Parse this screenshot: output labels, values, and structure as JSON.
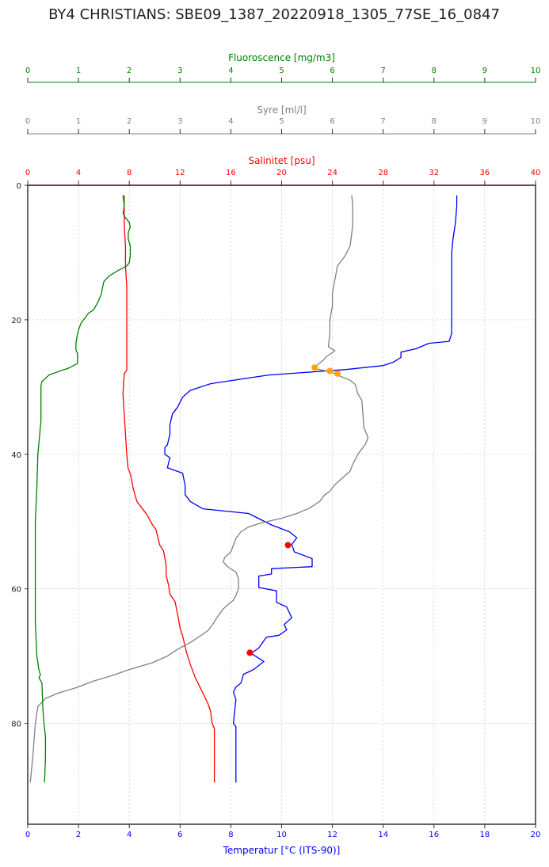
{
  "title": "BY4 CHRISTIANS: SBE09_1387_20220918_1305_77SE_16_0847",
  "colors": {
    "temperature": "#0000ff",
    "salinity": "#ff0000",
    "oxygen": "#808080",
    "fluorescence": "#008000",
    "marker_red": "#ff0000",
    "marker_orange": "#ffa500"
  },
  "chart_data": {
    "type": "line",
    "title": "BY4 CHRISTIANS: SBE09_1387_20220918_1305_77SE_16_0847",
    "grid": true,
    "y_axis": {
      "label": "",
      "range": [
        95,
        0
      ],
      "ticks": [
        "0",
        "20",
        "40",
        "60",
        "80"
      ],
      "tick_values": [
        0,
        20,
        40,
        60,
        80
      ],
      "inverted": true
    },
    "axes": [
      {
        "key": "temperature",
        "label": "Temperatur [°C (ITS-90)]",
        "position": "bottom",
        "color": "#0000ff",
        "range": [
          0,
          20
        ],
        "ticks": [
          "0",
          "2",
          "4",
          "6",
          "8",
          "10",
          "12",
          "14",
          "16",
          "18",
          "20"
        ]
      },
      {
        "key": "salinity",
        "label": "Salinitet [psu]",
        "position": "top",
        "color": "#ff0000",
        "range": [
          0,
          40
        ],
        "ticks": [
          "0",
          "4",
          "8",
          "12",
          "16",
          "20",
          "24",
          "28",
          "32",
          "36",
          "40"
        ]
      },
      {
        "key": "oxygen",
        "label": "Syre [ml/l]",
        "position": "top",
        "color": "#808080",
        "range": [
          0,
          10
        ],
        "ticks": [
          "0",
          "1",
          "2",
          "3",
          "4",
          "5",
          "6",
          "7",
          "8",
          "9",
          "10"
        ]
      },
      {
        "key": "fluorescence",
        "label": "Fluoroscence [mg/m3]",
        "position": "top",
        "color": "#008000",
        "range": [
          0,
          10
        ],
        "ticks": [
          "0",
          "1",
          "2",
          "3",
          "4",
          "5",
          "6",
          "7",
          "8",
          "9",
          "10"
        ]
      }
    ],
    "series": [
      {
        "key": "temperature",
        "axis": "temperature",
        "color": "#0000ff",
        "points": [
          [
            16.9,
            1.5
          ],
          [
            16.9,
            3
          ],
          [
            16.85,
            5.5
          ],
          [
            16.75,
            8
          ],
          [
            16.7,
            10
          ],
          [
            16.7,
            12
          ],
          [
            16.7,
            14
          ],
          [
            16.7,
            18
          ],
          [
            16.7,
            22
          ],
          [
            16.6,
            23.2
          ],
          [
            15.8,
            23.5
          ],
          [
            15.3,
            24.3
          ],
          [
            14.7,
            24.8
          ],
          [
            14.7,
            25.6
          ],
          [
            14.4,
            26.3
          ],
          [
            14,
            26.8
          ],
          [
            12.5,
            27.4
          ],
          [
            11,
            27.8
          ],
          [
            9.5,
            28.2
          ],
          [
            8.8,
            28.6
          ],
          [
            7.2,
            29.5
          ],
          [
            6.4,
            30.5
          ],
          [
            6.1,
            31.5
          ],
          [
            5.9,
            33
          ],
          [
            5.7,
            34
          ],
          [
            5.6,
            35.6
          ],
          [
            5.6,
            37
          ],
          [
            5.5,
            38.6
          ],
          [
            5.4,
            39
          ],
          [
            5.4,
            40
          ],
          [
            5.6,
            40.5
          ],
          [
            5.5,
            42
          ],
          [
            6.1,
            42.8
          ],
          [
            6.2,
            44.6
          ],
          [
            6.2,
            46
          ],
          [
            6.4,
            47
          ],
          [
            6.9,
            48.1
          ],
          [
            8.7,
            48.8
          ],
          [
            9.6,
            50.5
          ],
          [
            10.3,
            51.5
          ],
          [
            10.6,
            52.4
          ],
          [
            10.5,
            52.9
          ],
          [
            10.4,
            53.4
          ],
          [
            10.5,
            54.5
          ],
          [
            11.2,
            55.5
          ],
          [
            11.2,
            56.7
          ],
          [
            9.6,
            57
          ],
          [
            9.6,
            57.8
          ],
          [
            9.1,
            58.1
          ],
          [
            9.1,
            59.8
          ],
          [
            9.8,
            60.3
          ],
          [
            9.8,
            62
          ],
          [
            10.2,
            62.7
          ],
          [
            10.4,
            64.3
          ],
          [
            10.1,
            65.3
          ],
          [
            10.2,
            66.1
          ],
          [
            9.9,
            66.9
          ],
          [
            9.4,
            67.2
          ],
          [
            9.1,
            68.8
          ],
          [
            8.8,
            69.6
          ],
          [
            9.3,
            70.8
          ],
          [
            8.9,
            72
          ],
          [
            8.5,
            72.7
          ],
          [
            8.4,
            74
          ],
          [
            8.2,
            74.6
          ],
          [
            8.1,
            75.3
          ],
          [
            8.2,
            76.5
          ],
          [
            8.1,
            80
          ],
          [
            8.2,
            80.5
          ],
          [
            8.2,
            85
          ],
          [
            8.2,
            88.8
          ]
        ]
      },
      {
        "key": "salinity",
        "axis": "salinity",
        "color": "#ff0000",
        "points": [
          [
            7.5,
            1.5
          ],
          [
            7.6,
            3
          ],
          [
            7.6,
            6
          ],
          [
            7.7,
            9
          ],
          [
            7.7,
            12
          ],
          [
            7.8,
            15
          ],
          [
            7.8,
            20
          ],
          [
            7.8,
            24
          ],
          [
            7.8,
            27.5
          ],
          [
            7.6,
            28
          ],
          [
            7.5,
            31
          ],
          [
            7.6,
            34
          ],
          [
            7.7,
            37
          ],
          [
            7.8,
            40
          ],
          [
            7.9,
            42
          ],
          [
            8.1,
            43
          ],
          [
            8.3,
            45
          ],
          [
            8.6,
            47
          ],
          [
            9,
            48
          ],
          [
            9.4,
            49
          ],
          [
            9.8,
            50.4
          ],
          [
            10.1,
            51.2
          ],
          [
            10.2,
            52
          ],
          [
            10.4,
            53.5
          ],
          [
            10.7,
            54.4
          ],
          [
            10.9,
            56.5
          ],
          [
            10.9,
            58
          ],
          [
            11.1,
            59.5
          ],
          [
            11.2,
            60.8
          ],
          [
            11.6,
            61.9
          ],
          [
            11.8,
            63.7
          ],
          [
            12,
            65.8
          ],
          [
            12.2,
            67
          ],
          [
            12.5,
            69.4
          ],
          [
            12.8,
            71.2
          ],
          [
            13.2,
            73.2
          ],
          [
            13.8,
            75.5
          ],
          [
            14.2,
            77.1
          ],
          [
            14.4,
            78.2
          ],
          [
            14.5,
            79.8
          ],
          [
            14.7,
            80.8
          ],
          [
            14.7,
            85
          ],
          [
            14.7,
            88.8
          ]
        ]
      },
      {
        "key": "oxygen",
        "axis": "oxygen",
        "color": "#808080",
        "points": [
          [
            6.38,
            1.5
          ],
          [
            6.4,
            3
          ],
          [
            6.4,
            6
          ],
          [
            6.35,
            9
          ],
          [
            6.25,
            10.5
          ],
          [
            6.1,
            12
          ],
          [
            6.05,
            14
          ],
          [
            6,
            16
          ],
          [
            6,
            18
          ],
          [
            5.95,
            20
          ],
          [
            5.95,
            22
          ],
          [
            5.92,
            24
          ],
          [
            6.05,
            24.6
          ],
          [
            5.88,
            25.5
          ],
          [
            5.82,
            26
          ],
          [
            5.72,
            26.6
          ],
          [
            5.62,
            27.2
          ],
          [
            5.95,
            27.7
          ],
          [
            6.1,
            28.2
          ],
          [
            6.35,
            29
          ],
          [
            6.45,
            29.6
          ],
          [
            6.5,
            31
          ],
          [
            6.58,
            32
          ],
          [
            6.6,
            34
          ],
          [
            6.62,
            36
          ],
          [
            6.7,
            37.5
          ],
          [
            6.65,
            38.5
          ],
          [
            6.5,
            40
          ],
          [
            6.4,
            41.5
          ],
          [
            6.35,
            42.5
          ],
          [
            6.2,
            43.5
          ],
          [
            6.05,
            44.5
          ],
          [
            5.95,
            45.5
          ],
          [
            5.85,
            46
          ],
          [
            5.75,
            47
          ],
          [
            5.55,
            48
          ],
          [
            5.3,
            48.8
          ],
          [
            5,
            49.5
          ],
          [
            4.6,
            50.2
          ],
          [
            4.35,
            50.8
          ],
          [
            4.2,
            51.5
          ],
          [
            4.1,
            52.5
          ],
          [
            4.05,
            53.5
          ],
          [
            4,
            54.5
          ],
          [
            3.88,
            55.3
          ],
          [
            3.85,
            56
          ],
          [
            3.95,
            56.8
          ],
          [
            4.1,
            57.5
          ],
          [
            4.15,
            58.5
          ],
          [
            4.15,
            60
          ],
          [
            4.1,
            61
          ],
          [
            4.05,
            61.7
          ],
          [
            3.95,
            62.3
          ],
          [
            3.85,
            63
          ],
          [
            3.75,
            64
          ],
          [
            3.65,
            65.2
          ],
          [
            3.55,
            66.2
          ],
          [
            3.4,
            67
          ],
          [
            3.2,
            68
          ],
          [
            2.95,
            69
          ],
          [
            2.75,
            70
          ],
          [
            2.45,
            71
          ],
          [
            2,
            72
          ],
          [
            1.7,
            72.8
          ],
          [
            1.3,
            73.7
          ],
          [
            0.95,
            74.7
          ],
          [
            0.6,
            75.5
          ],
          [
            0.35,
            76.3
          ],
          [
            0.2,
            77.5
          ],
          [
            0.15,
            80
          ],
          [
            0.1,
            85
          ],
          [
            0.05,
            88.8
          ]
        ]
      },
      {
        "key": "fluorescence",
        "axis": "fluorescence",
        "color": "#008000",
        "points": [
          [
            1.9,
            1.5
          ],
          [
            1.9,
            3
          ],
          [
            1.88,
            4.2
          ],
          [
            1.92,
            4.8
          ],
          [
            2,
            5.5
          ],
          [
            2.02,
            6.2
          ],
          [
            1.98,
            7
          ],
          [
            1.98,
            8
          ],
          [
            2.02,
            9
          ],
          [
            2.02,
            10.5
          ],
          [
            2,
            11.5
          ],
          [
            1.95,
            12
          ],
          [
            1.75,
            12.8
          ],
          [
            1.6,
            13.5
          ],
          [
            1.5,
            14.3
          ],
          [
            1.47,
            15.3
          ],
          [
            1.45,
            16.2
          ],
          [
            1.4,
            17.1
          ],
          [
            1.3,
            18.5
          ],
          [
            1.2,
            19
          ],
          [
            1.15,
            19.5
          ],
          [
            1.05,
            20.5
          ],
          [
            1,
            21.5
          ],
          [
            0.97,
            22.5
          ],
          [
            0.95,
            23.5
          ],
          [
            0.95,
            24.5
          ],
          [
            0.98,
            25
          ],
          [
            0.98,
            26.5
          ],
          [
            0.8,
            27.2
          ],
          [
            0.6,
            27.7
          ],
          [
            0.42,
            28.2
          ],
          [
            0.35,
            28.7
          ],
          [
            0.28,
            29.2
          ],
          [
            0.26,
            29.8
          ],
          [
            0.26,
            31
          ],
          [
            0.26,
            32
          ],
          [
            0.26,
            35
          ],
          [
            0.2,
            40
          ],
          [
            0.18,
            45
          ],
          [
            0.15,
            50
          ],
          [
            0.15,
            55
          ],
          [
            0.15,
            60
          ],
          [
            0.15,
            65
          ],
          [
            0.18,
            70
          ],
          [
            0.22,
            72
          ],
          [
            0.25,
            72.8
          ],
          [
            0.22,
            73.2
          ],
          [
            0.28,
            74
          ],
          [
            0.3,
            78
          ],
          [
            0.32,
            80
          ],
          [
            0.35,
            82
          ],
          [
            0.35,
            85
          ],
          [
            0.33,
            88.8
          ]
        ]
      }
    ],
    "markers": [
      {
        "axis": "oxygen",
        "x": 5.65,
        "y": 27.1,
        "color": "#ffa500"
      },
      {
        "axis": "oxygen",
        "x": 5.95,
        "y": 27.6,
        "color": "#ffa500"
      },
      {
        "axis": "oxygen",
        "x": 6.1,
        "y": 28.0,
        "color": "#ffa500"
      },
      {
        "axis": "temperature",
        "x": 10.25,
        "y": 53.5,
        "color": "#ff0000"
      },
      {
        "axis": "temperature",
        "x": 8.75,
        "y": 69.5,
        "color": "#ff0000"
      }
    ]
  }
}
